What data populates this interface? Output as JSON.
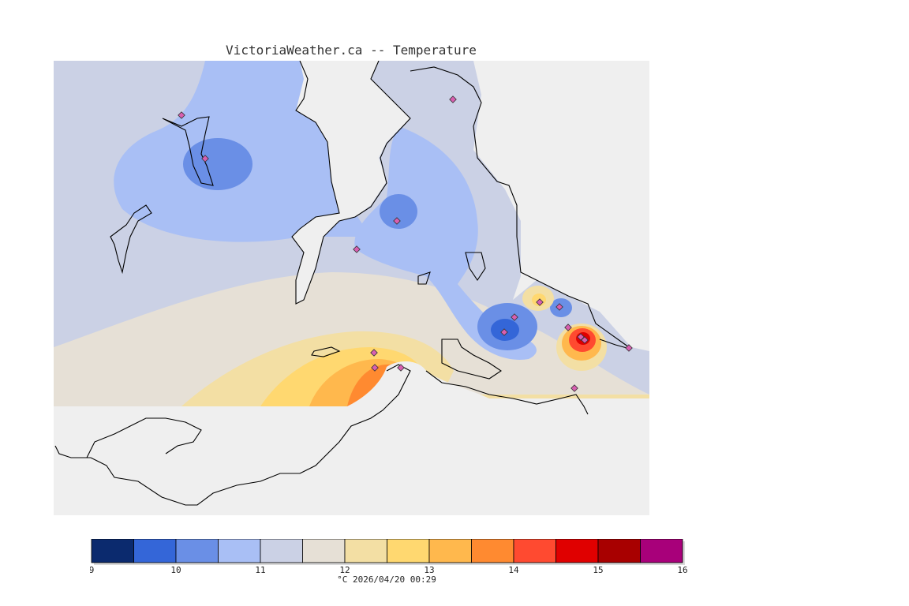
{
  "title": "VictoriaWeather.ca  --  Temperature",
  "footer": "°C  2026/04/20 00:29",
  "colors": {
    "land_bg": "#cbd1e5",
    "water": "#efefef",
    "coast": "#000000",
    "station": "#d85fb0"
  },
  "legend": {
    "ticks": [
      "9",
      "10",
      "11",
      "12",
      "13",
      "14",
      "15",
      "16"
    ],
    "bins": [
      {
        "from": 9.0,
        "to": 9.5,
        "color": "#0b2a6e"
      },
      {
        "from": 9.5,
        "to": 10.0,
        "color": "#3466d8"
      },
      {
        "from": 10.0,
        "to": 10.5,
        "color": "#6a8fe6"
      },
      {
        "from": 10.5,
        "to": 11.0,
        "color": "#a9bff5"
      },
      {
        "from": 11.0,
        "to": 11.5,
        "color": "#cbd1e5"
      },
      {
        "from": 11.5,
        "to": 12.0,
        "color": "#e6e0d6"
      },
      {
        "from": 12.0,
        "to": 12.5,
        "color": "#f3dfa4"
      },
      {
        "from": 12.5,
        "to": 13.0,
        "color": "#ffd870"
      },
      {
        "from": 13.0,
        "to": 13.5,
        "color": "#ffb84d"
      },
      {
        "from": 13.5,
        "to": 14.0,
        "color": "#ff8a30"
      },
      {
        "from": 14.0,
        "to": 14.5,
        "color": "#ff4a30"
      },
      {
        "from": 14.5,
        "to": 15.0,
        "color": "#e00000"
      },
      {
        "from": 15.0,
        "to": 15.5,
        "color": "#a80000"
      },
      {
        "from": 15.5,
        "to": 16.0,
        "color": "#a8007a"
      }
    ]
  }
}
